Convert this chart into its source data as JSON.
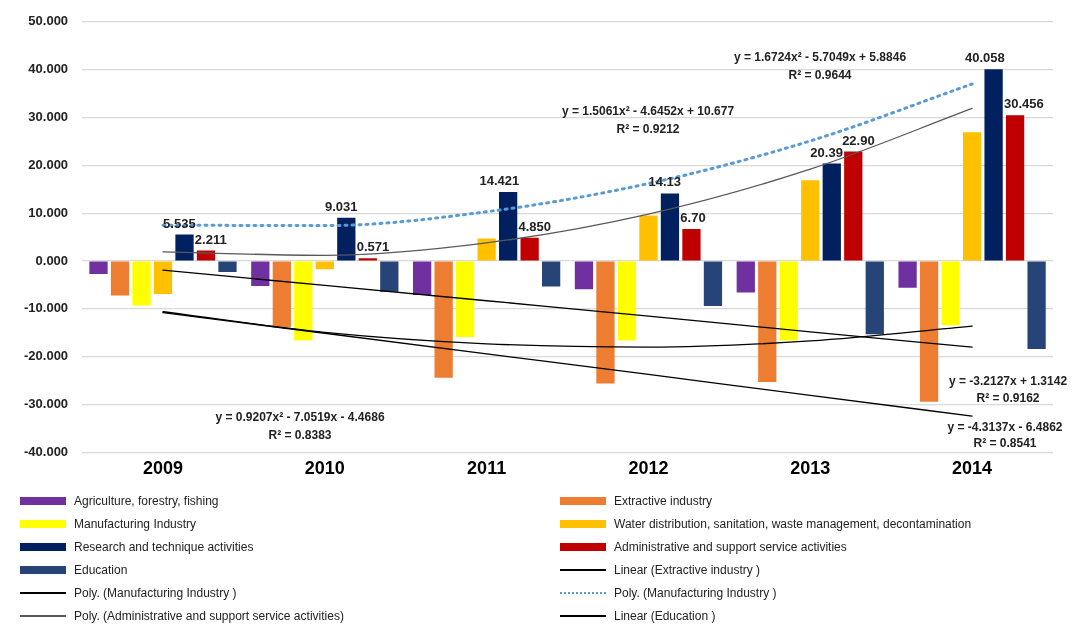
{
  "chart_data": {
    "type": "bar",
    "categories": [
      "2009",
      "2010",
      "2011",
      "2012",
      "2013",
      "2014"
    ],
    "series": [
      {
        "name": "Agriculture, forestry, fishing",
        "color": "#7030a0",
        "values": [
          -2.7,
          -5.2,
          -7.1,
          -5.9,
          -6.6,
          -5.6
        ]
      },
      {
        "name": "Extractive industry",
        "color": "#ed7d31",
        "values": [
          -7.2,
          -13.9,
          -24.4,
          -25.6,
          -25.3,
          -29.4
        ]
      },
      {
        "name": "Manufacturing Industry",
        "color": "#ffff00",
        "values": [
          -9.3,
          -16.6,
          -15.9,
          -16.6,
          -16.6,
          -13.4
        ]
      },
      {
        "name": "Water distribution, sanitation, waste management, decontamination",
        "color": "#ffc000",
        "values": [
          -6.9,
          -1.7,
          4.7,
          9.5,
          16.9,
          26.9
        ]
      },
      {
        "name": "Research and technique activities",
        "color": "#002060",
        "values": [
          5.535,
          9.031,
          14.421,
          14.13,
          20.39,
          40.058
        ],
        "value_labels": [
          "5.535",
          "9.031",
          "14.421",
          "14.13",
          "20.39",
          "40.058"
        ]
      },
      {
        "name": "Administrative and support service activities",
        "color": "#c00000",
        "values": [
          2.211,
          0.571,
          4.85,
          6.7,
          22.9,
          30.456
        ],
        "value_labels": [
          "2.211",
          "0.571",
          "4.850",
          "6.70",
          "22.90",
          "30.456"
        ]
      },
      {
        "name": "Education",
        "color": "#264478",
        "values": [
          -2.3,
          -6.4,
          -5.3,
          -9.4,
          -15.3,
          -18.4
        ]
      },
      {
        "name": "Linear (Extractive industry )",
        "type": "line",
        "color": "#000000",
        "values": [
          -10.8,
          -15.1,
          -19.4,
          -23.7,
          -28.1,
          -32.4
        ]
      },
      {
        "name": "Poly. (Manufacturing Industry )",
        "type": "line",
        "color": "#000000",
        "values": [
          -10.6,
          -14.9,
          -17.3,
          -18.0,
          -16.7,
          -13.6
        ]
      },
      {
        "name": "Poly. (Manufacturing Industry )",
        "type": "line",
        "color": "#5b9bd5",
        "line_style": "dotted",
        "values": [
          7.5,
          7.4,
          10.3,
          16.2,
          25.1,
          37.0
        ]
      },
      {
        "name": "Poly. (Administrative and support service activities)",
        "type": "line",
        "color": "#595959",
        "values": [
          1.9,
          1.2,
          3.8,
          9.8,
          19.2,
          31.9
        ]
      },
      {
        "name": "Linear (Education )",
        "type": "line",
        "color": "#000000",
        "values": [
          -1.9,
          -5.1,
          -8.3,
          -11.5,
          -14.8,
          -18.0
        ]
      }
    ],
    "ylim": [
      -40,
      50
    ],
    "yticks": [
      {
        "value": -40,
        "label": "-40.000"
      },
      {
        "value": -30,
        "label": "-30.000"
      },
      {
        "value": -20,
        "label": "-20.000"
      },
      {
        "value": -10,
        "label": "-10.000"
      },
      {
        "value": 0,
        "label": "0.000"
      },
      {
        "value": 10,
        "label": "10.000"
      },
      {
        "value": 20,
        "label": "20.000"
      },
      {
        "value": 30,
        "label": "30.000"
      },
      {
        "value": 40,
        "label": "40.000"
      },
      {
        "value": 50,
        "label": "50.000"
      }
    ],
    "grid": "y",
    "legend": "bottom",
    "marker": "none",
    "line_style": "solid",
    "annotations": [
      "y = 1.5061x² - 4.6452x + 10.677",
      "R² = 0.9212",
      "y = 1.6724x² - 5.7049x + 5.8846",
      "R² = 0.9644",
      "y = 0.9207x² - 7.0519x - 4.4686",
      "R² = 0.8383",
      "y = -3.2127x + 1.3142",
      "R² = 0.9162",
      "y = -4.3137x - 6.4862",
      "R² = 0.8541"
    ]
  }
}
